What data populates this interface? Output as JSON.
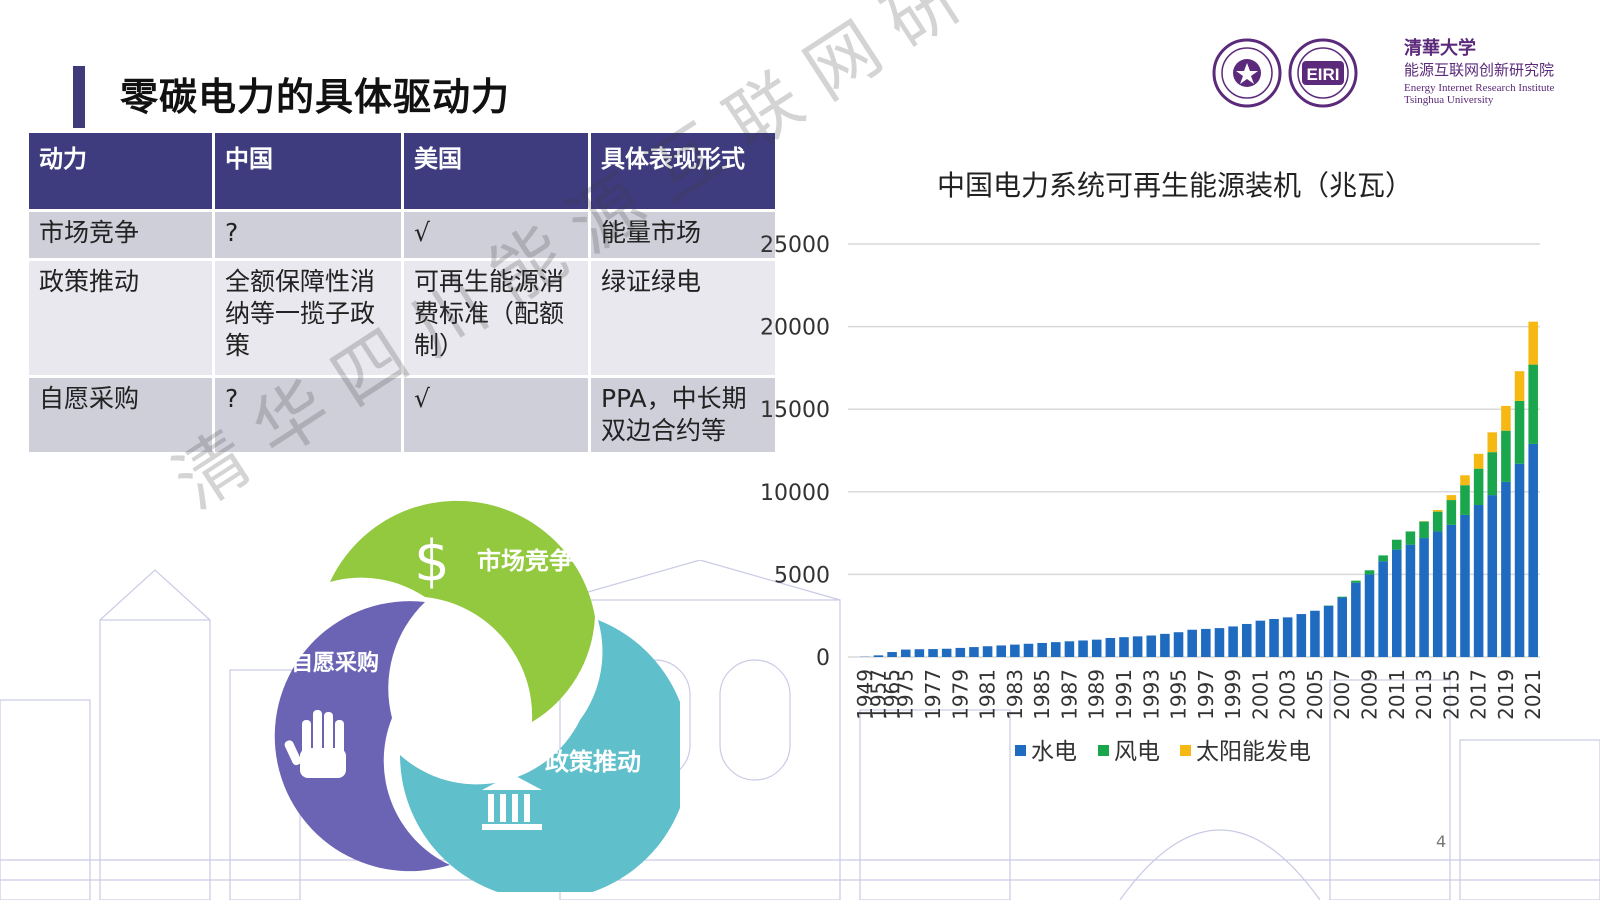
{
  "title": "零碳电力的具体驱动力",
  "logo": {
    "inst_cn_top": "清華大学",
    "inst_cn": "能源互联网创新研究院",
    "inst_en_1": "Energy Internet Research Institute",
    "inst_en_2": "Tsinghua University",
    "badge_text": "EIRI"
  },
  "table": {
    "headers": [
      "动力",
      "中国",
      "美国",
      "具体表现形式"
    ],
    "rows": [
      [
        "市场竞争",
        "?",
        "√",
        "能量市场"
      ],
      [
        "政策推动",
        "全额保障性消纳等一揽子政策",
        "可再生能源消费标准（配额制）",
        "绿证绿电"
      ],
      [
        "自愿采购",
        "?",
        "√",
        "PPA，中长期双边合约等"
      ]
    ]
  },
  "cycle": {
    "market": "市场竞争",
    "policy": "政策推动",
    "voluntary": "自愿采购",
    "colors": {
      "market": "#92c93e",
      "policy": "#5fbfcb",
      "voluntary": "#6b64b5"
    },
    "icons": [
      "dollar-icon",
      "bank-icon",
      "hand-icon"
    ]
  },
  "watermark": "清华四川能源互联网研究院",
  "chart_data": {
    "type": "bar",
    "stacked": true,
    "title": "中国电力系统可再生能源装机（兆瓦）",
    "categories": [
      "1949",
      "1957",
      "1965",
      "1975",
      "1976",
      "1977",
      "1978",
      "1979",
      "1980",
      "1981",
      "1982",
      "1983",
      "1984",
      "1985",
      "1986",
      "1987",
      "1988",
      "1989",
      "1990",
      "1991",
      "1992",
      "1993",
      "1994",
      "1995",
      "1996",
      "1997",
      "1998",
      "1999",
      "2000",
      "2001",
      "2002",
      "2003",
      "2004",
      "2005",
      "2006",
      "2007",
      "2008",
      "2009",
      "2010",
      "2011",
      "2012",
      "2013",
      "2014",
      "2015",
      "2016",
      "2017",
      "2018",
      "2019",
      "2020",
      "2021"
    ],
    "tick_labels": [
      "1949",
      "1957",
      "1965",
      "1975",
      "1977",
      "1979",
      "1981",
      "1983",
      "1985",
      "1987",
      "1989",
      "1991",
      "1993",
      "1995",
      "1997",
      "1999",
      "2001",
      "2003",
      "2005",
      "2007",
      "2009",
      "2011",
      "2013",
      "2015",
      "2017",
      "2019",
      "2021"
    ],
    "series": [
      {
        "name": "水电",
        "color": "#1f6bbf",
        "values": [
          16,
          100,
          300,
          450,
          470,
          480,
          500,
          550,
          600,
          650,
          700,
          750,
          800,
          850,
          900,
          950,
          1000,
          1050,
          1150,
          1200,
          1250,
          1300,
          1400,
          1500,
          1650,
          1700,
          1750,
          1850,
          2000,
          2200,
          2300,
          2400,
          2600,
          2800,
          3100,
          3600,
          4500,
          5000,
          5800,
          6500,
          6800,
          7200,
          7600,
          8000,
          8600,
          9200,
          9800,
          10600,
          11700,
          12900
        ]
      },
      {
        "name": "风电",
        "color": "#1aa64c",
        "values": [
          0,
          0,
          0,
          0,
          0,
          0,
          0,
          0,
          0,
          0,
          0,
          0,
          0,
          0,
          0,
          0,
          0,
          0,
          0,
          0,
          0,
          0,
          0,
          0,
          0,
          0,
          0,
          0,
          0,
          0,
          0,
          0,
          0,
          0,
          20,
          50,
          120,
          250,
          350,
          600,
          800,
          1000,
          1200,
          1500,
          1800,
          2200,
          2600,
          3100,
          3800,
          4800
        ]
      },
      {
        "name": "太阳能发电",
        "color": "#f6b913",
        "values": [
          0,
          0,
          0,
          0,
          0,
          0,
          0,
          0,
          0,
          0,
          0,
          0,
          0,
          0,
          0,
          0,
          0,
          0,
          0,
          0,
          0,
          0,
          0,
          0,
          0,
          0,
          0,
          0,
          0,
          0,
          0,
          0,
          0,
          0,
          0,
          0,
          0,
          0,
          0,
          0,
          0,
          20,
          100,
          300,
          600,
          900,
          1200,
          1500,
          1800,
          2600
        ]
      }
    ],
    "ylim": [
      0,
      25000
    ],
    "yticks": [
      "0",
      "5000",
      "10000",
      "15000",
      "20000",
      "25000"
    ],
    "ytick_values": [
      0,
      5000,
      10000,
      15000,
      20000,
      25000
    ],
    "grid": true,
    "legend": "bottom"
  },
  "page_number": "4"
}
